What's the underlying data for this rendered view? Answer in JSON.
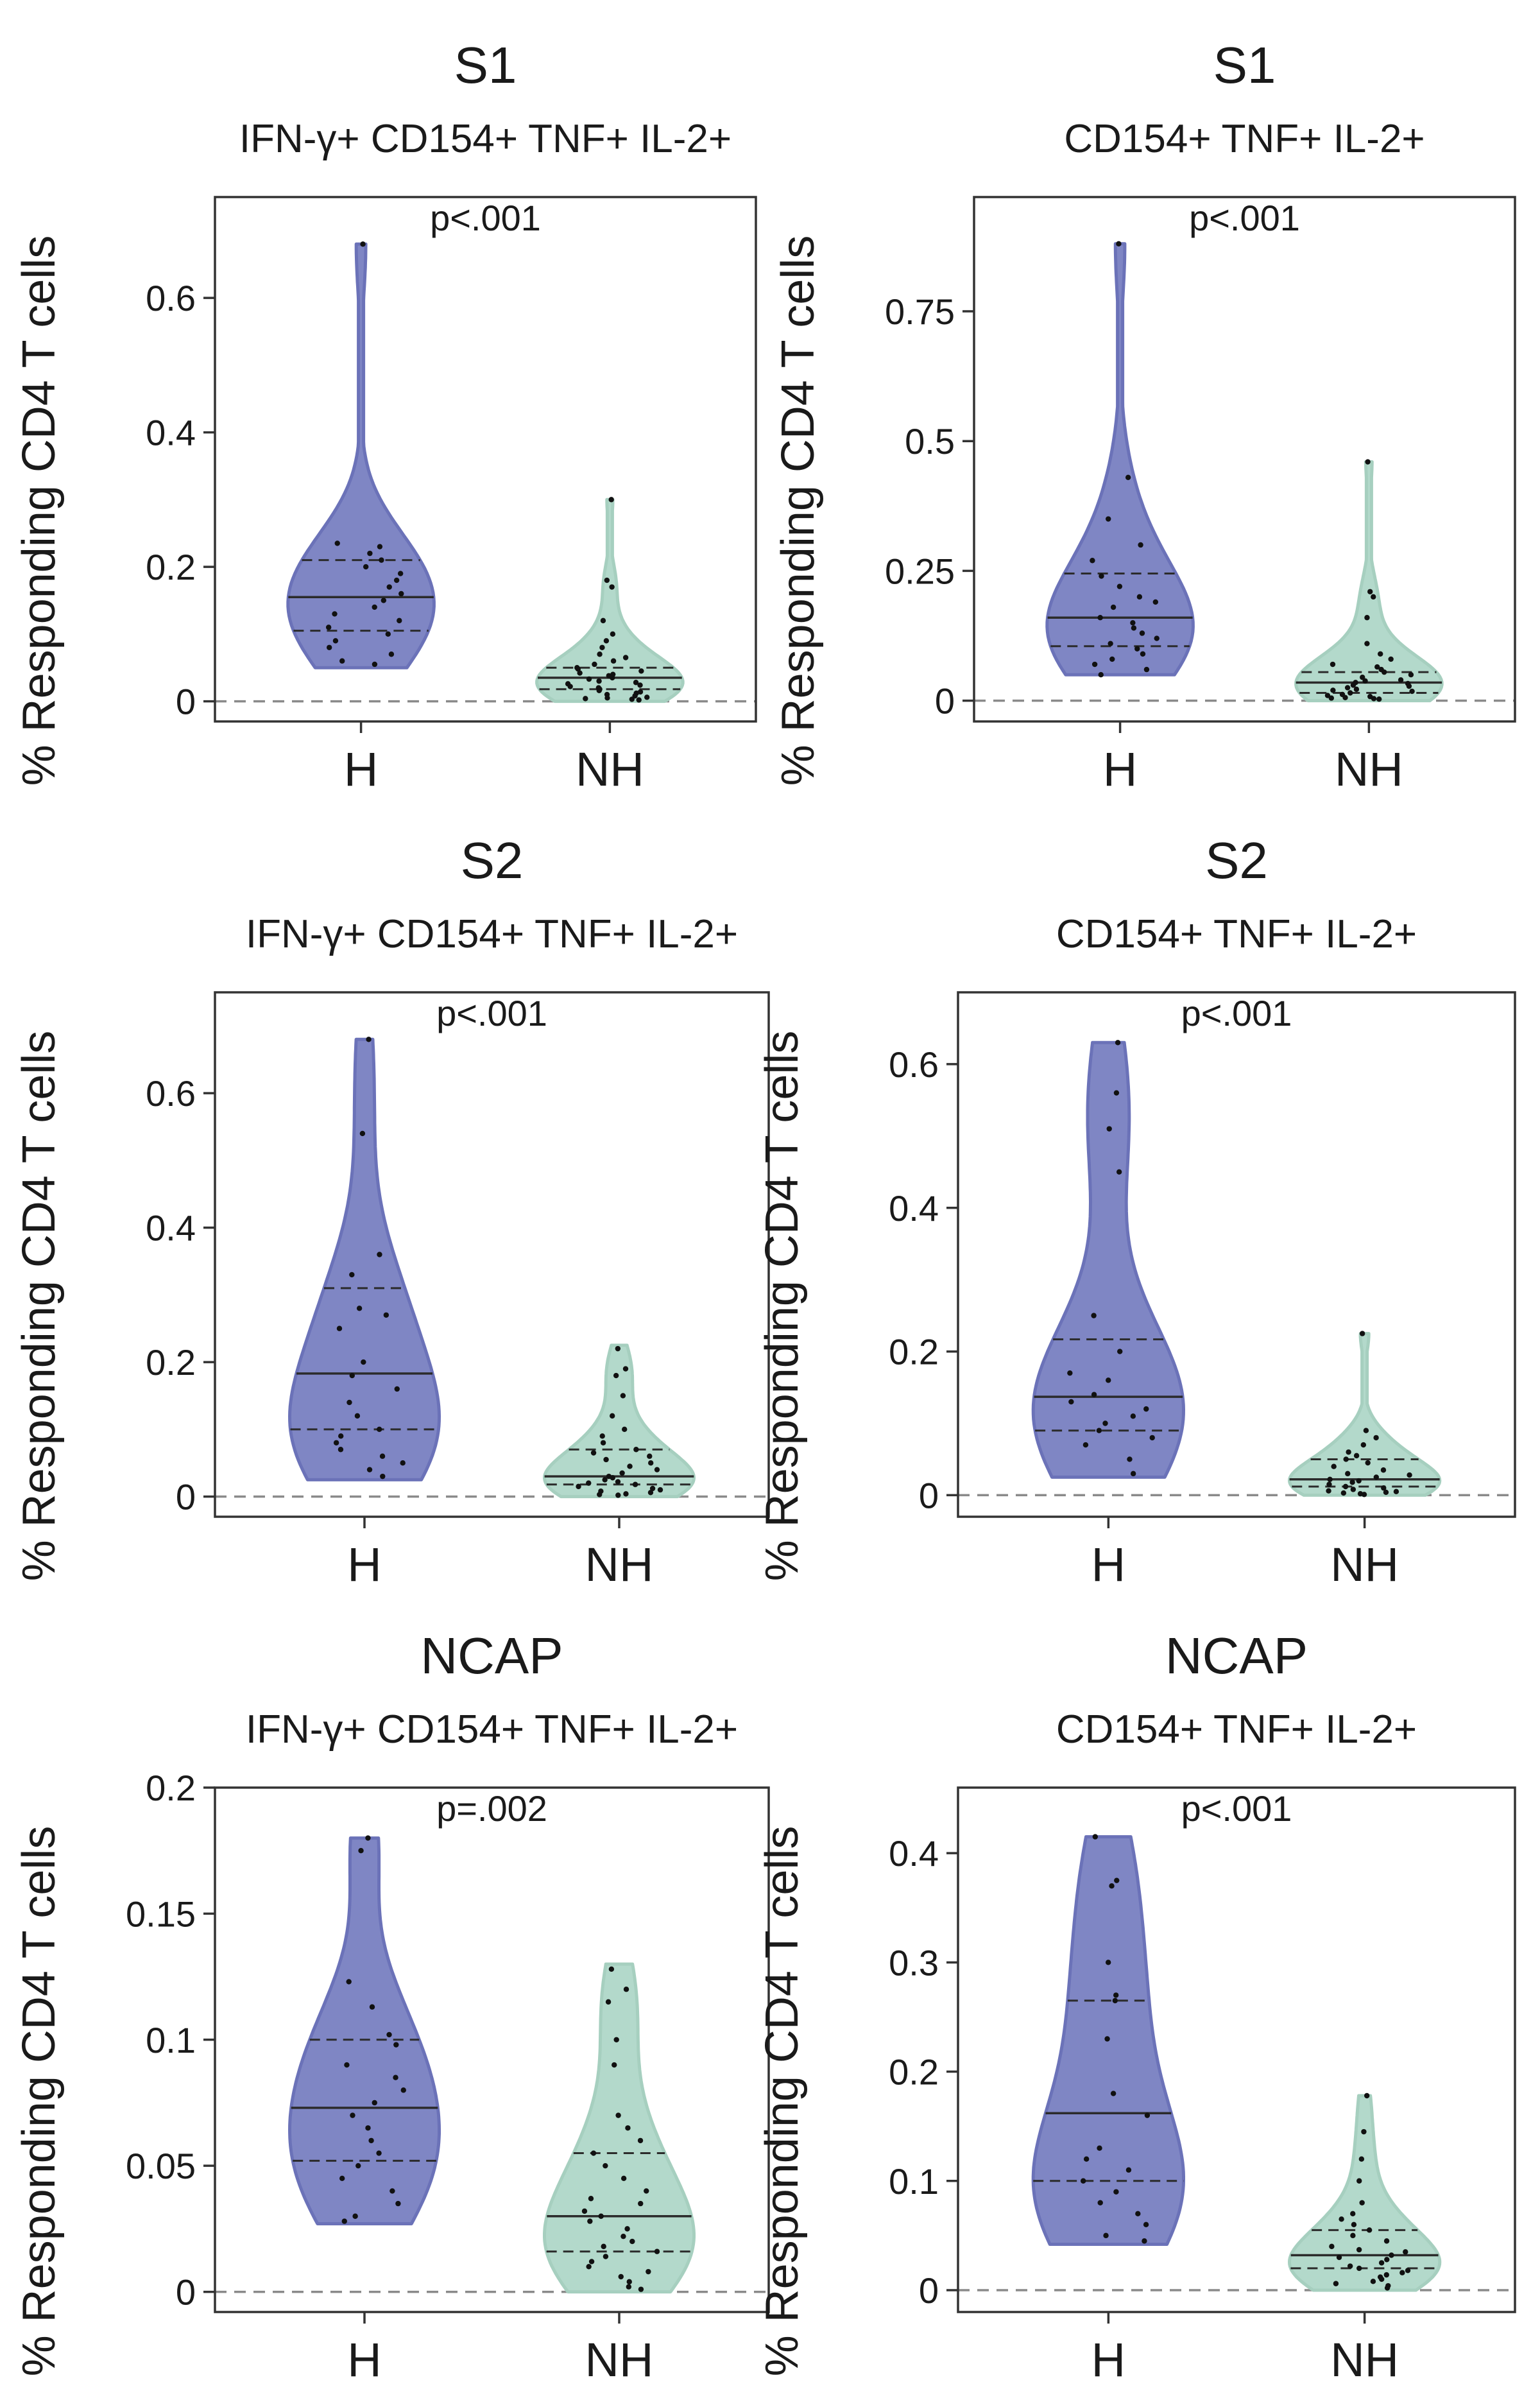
{
  "colors": {
    "H": "#7f86c4",
    "H_edge": "#6b72b8",
    "NH": "#b3d9cb",
    "NH_edge": "#a6cfbf"
  },
  "chart_data": [
    {
      "type": "violin",
      "title": "S1",
      "subtitle": "IFN-γ+ CD154+ TNF+ IL-2+",
      "ylabel": "% Responding CD4 T cells",
      "xlabel": "",
      "categories": [
        "H",
        "NH"
      ],
      "yticks": [
        0,
        0.2,
        0.4,
        0.6
      ],
      "ytick_labels": [
        "0",
        "0.2",
        "0.4",
        "0.6"
      ],
      "ylim": [
        -0.03,
        0.75
      ],
      "pvalue": "p<.001",
      "groups": [
        {
          "name": "H",
          "min": 0.05,
          "q1": 0.105,
          "median": 0.155,
          "q3": 0.21,
          "max": 0.68,
          "points": [
            0.68,
            0.235,
            0.23,
            0.22,
            0.21,
            0.2,
            0.19,
            0.18,
            0.17,
            0.16,
            0.15,
            0.14,
            0.13,
            0.12,
            0.11,
            0.1,
            0.09,
            0.08,
            0.07,
            0.06,
            0.055
          ]
        },
        {
          "name": "NH",
          "min": 0.0,
          "q1": 0.018,
          "median": 0.035,
          "q3": 0.05,
          "max": 0.3,
          "points": [
            0.3,
            0.18,
            0.17,
            0.12,
            0.1,
            0.09,
            0.08,
            0.07,
            0.065,
            0.06,
            0.055,
            0.05,
            0.048,
            0.045,
            0.042,
            0.04,
            0.038,
            0.035,
            0.033,
            0.03,
            0.028,
            0.026,
            0.024,
            0.022,
            0.02,
            0.018,
            0.016,
            0.014,
            0.012,
            0.01,
            0.008,
            0.006,
            0.005,
            0.004,
            0.003,
            0.002
          ]
        }
      ]
    },
    {
      "type": "violin",
      "title": "S1",
      "subtitle": "CD154+ TNF+ IL-2+",
      "ylabel": "% Responding CD4 T cells",
      "xlabel": "",
      "categories": [
        "H",
        "NH"
      ],
      "yticks": [
        0,
        0.25,
        0.5,
        0.75
      ],
      "ytick_labels": [
        "0",
        "0.25",
        "0.5",
        "0.75"
      ],
      "ylim": [
        -0.04,
        0.97
      ],
      "pvalue": "p<.001",
      "groups": [
        {
          "name": "H",
          "min": 0.05,
          "q1": 0.105,
          "median": 0.16,
          "q3": 0.245,
          "max": 0.88,
          "points": [
            0.88,
            0.43,
            0.35,
            0.3,
            0.27,
            0.24,
            0.22,
            0.2,
            0.19,
            0.18,
            0.16,
            0.15,
            0.14,
            0.13,
            0.12,
            0.11,
            0.1,
            0.09,
            0.08,
            0.07,
            0.06,
            0.05
          ]
        },
        {
          "name": "NH",
          "min": 0.0,
          "q1": 0.015,
          "median": 0.035,
          "q3": 0.055,
          "max": 0.46,
          "points": [
            0.46,
            0.21,
            0.2,
            0.16,
            0.11,
            0.09,
            0.08,
            0.07,
            0.065,
            0.06,
            0.055,
            0.05,
            0.045,
            0.04,
            0.038,
            0.035,
            0.033,
            0.03,
            0.028,
            0.025,
            0.022,
            0.02,
            0.018,
            0.015,
            0.012,
            0.01,
            0.008,
            0.006,
            0.005,
            0.004,
            0.003
          ]
        }
      ]
    },
    {
      "type": "violin",
      "title": "S2",
      "subtitle": "IFN-γ+ CD154+ TNF+ IL-2+",
      "ylabel": "% Responding CD4 T cells",
      "xlabel": "",
      "categories": [
        "H",
        "NH"
      ],
      "yticks": [
        0,
        0.2,
        0.4,
        0.6
      ],
      "ytick_labels": [
        "0",
        "0.2",
        "0.4",
        "0.6"
      ],
      "ylim": [
        -0.03,
        0.75
      ],
      "pvalue": "p<.001",
      "groups": [
        {
          "name": "H",
          "min": 0.025,
          "q1": 0.1,
          "median": 0.183,
          "q3": 0.31,
          "max": 0.68,
          "points": [
            0.68,
            0.54,
            0.36,
            0.33,
            0.28,
            0.27,
            0.25,
            0.2,
            0.18,
            0.16,
            0.14,
            0.12,
            0.1,
            0.09,
            0.08,
            0.07,
            0.06,
            0.05,
            0.04,
            0.03
          ]
        },
        {
          "name": "NH",
          "min": 0.0,
          "q1": 0.018,
          "median": 0.03,
          "q3": 0.07,
          "max": 0.225,
          "points": [
            0.22,
            0.19,
            0.18,
            0.15,
            0.12,
            0.1,
            0.09,
            0.08,
            0.07,
            0.065,
            0.06,
            0.055,
            0.05,
            0.045,
            0.04,
            0.035,
            0.03,
            0.028,
            0.025,
            0.022,
            0.02,
            0.018,
            0.015,
            0.012,
            0.01,
            0.008,
            0.006,
            0.004,
            0.003,
            0.002
          ]
        }
      ]
    },
    {
      "type": "violin",
      "title": "S2",
      "subtitle": "CD154+ TNF+ IL-2+",
      "ylabel": "% Responding CD4 T cells",
      "xlabel": "",
      "categories": [
        "H",
        "NH"
      ],
      "yticks": [
        0,
        0.2,
        0.4,
        0.6
      ],
      "ytick_labels": [
        "0",
        "0.2",
        "0.4",
        "0.6"
      ],
      "ylim": [
        -0.03,
        0.7
      ],
      "pvalue": "p<.001",
      "groups": [
        {
          "name": "H",
          "min": 0.025,
          "q1": 0.09,
          "median": 0.137,
          "q3": 0.217,
          "max": 0.63,
          "points": [
            0.63,
            0.56,
            0.51,
            0.45,
            0.25,
            0.2,
            0.17,
            0.16,
            0.14,
            0.13,
            0.12,
            0.11,
            0.1,
            0.09,
            0.08,
            0.07,
            0.05,
            0.03
          ]
        },
        {
          "name": "NH",
          "min": 0.0,
          "q1": 0.012,
          "median": 0.022,
          "q3": 0.05,
          "max": 0.225,
          "points": [
            0.225,
            0.09,
            0.08,
            0.07,
            0.06,
            0.055,
            0.05,
            0.045,
            0.04,
            0.035,
            0.03,
            0.028,
            0.025,
            0.022,
            0.02,
            0.018,
            0.015,
            0.012,
            0.01,
            0.008,
            0.006,
            0.005,
            0.004,
            0.003,
            0.002,
            0.001
          ]
        }
      ]
    },
    {
      "type": "violin",
      "title": "NCAP",
      "subtitle": "IFN-γ+ CD154+ TNF+ IL-2+",
      "ylabel": "% Responding CD4 T cells",
      "xlabel": "",
      "categories": [
        "H",
        "NH"
      ],
      "yticks": [
        0,
        0.05,
        0.1,
        0.15,
        0.2
      ],
      "ytick_labels": [
        "0",
        "0.05",
        "0.1",
        "0.15",
        "0.2"
      ],
      "ylim": [
        -0.008,
        0.2
      ],
      "pvalue": "p=.002",
      "groups": [
        {
          "name": "H",
          "min": 0.027,
          "q1": 0.052,
          "median": 0.073,
          "q3": 0.1,
          "max": 0.18,
          "points": [
            0.18,
            0.175,
            0.123,
            0.113,
            0.102,
            0.098,
            0.09,
            0.085,
            0.08,
            0.075,
            0.07,
            0.065,
            0.06,
            0.055,
            0.05,
            0.045,
            0.04,
            0.035,
            0.03,
            0.028
          ]
        },
        {
          "name": "NH",
          "min": 0.0,
          "q1": 0.016,
          "median": 0.03,
          "q3": 0.055,
          "max": 0.13,
          "points": [
            0.128,
            0.12,
            0.115,
            0.1,
            0.09,
            0.07,
            0.065,
            0.06,
            0.055,
            0.05,
            0.045,
            0.04,
            0.037,
            0.035,
            0.032,
            0.03,
            0.028,
            0.025,
            0.022,
            0.02,
            0.018,
            0.016,
            0.014,
            0.012,
            0.01,
            0.008,
            0.006,
            0.004,
            0.002,
            0.001
          ]
        }
      ]
    },
    {
      "type": "violin",
      "title": "NCAP",
      "subtitle": "CD154+ TNF+ IL-2+",
      "ylabel": "% Responding CD4 T cells",
      "xlabel": "",
      "categories": [
        "H",
        "NH"
      ],
      "yticks": [
        0,
        0.1,
        0.2,
        0.3,
        0.4
      ],
      "ytick_labels": [
        "0",
        "0.1",
        "0.2",
        "0.3",
        "0.4"
      ],
      "ylim": [
        -0.02,
        0.46
      ],
      "pvalue": "p<.001",
      "groups": [
        {
          "name": "H",
          "min": 0.042,
          "q1": 0.1,
          "median": 0.162,
          "q3": 0.265,
          "max": 0.415,
          "points": [
            0.415,
            0.375,
            0.37,
            0.3,
            0.27,
            0.265,
            0.23,
            0.18,
            0.16,
            0.13,
            0.12,
            0.11,
            0.1,
            0.09,
            0.08,
            0.07,
            0.06,
            0.05,
            0.045
          ]
        },
        {
          "name": "NH",
          "min": 0.0,
          "q1": 0.02,
          "median": 0.032,
          "q3": 0.055,
          "max": 0.178,
          "points": [
            0.178,
            0.145,
            0.12,
            0.1,
            0.08,
            0.07,
            0.065,
            0.06,
            0.055,
            0.05,
            0.045,
            0.04,
            0.037,
            0.035,
            0.032,
            0.03,
            0.028,
            0.025,
            0.022,
            0.02,
            0.018,
            0.016,
            0.014,
            0.012,
            0.01,
            0.008,
            0.006,
            0.004,
            0.002
          ]
        }
      ]
    }
  ]
}
